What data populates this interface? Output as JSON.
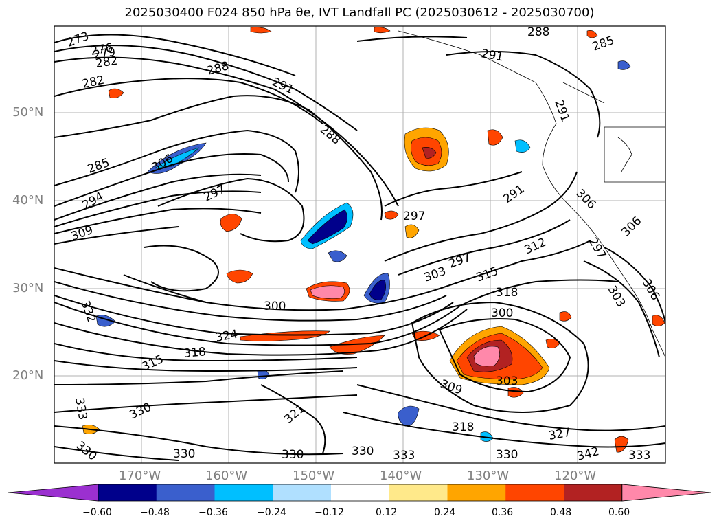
{
  "title": "2025030400 F024 850 hPa θe, IVT Landfall PC (2025030612 - 2025030700)",
  "lat_labels": [
    "50°N",
    "40°N",
    "30°N",
    "20°N"
  ],
  "lon_labels": [
    "170°W",
    "160°W",
    "150°W",
    "140°W",
    "130°W",
    "120°W"
  ],
  "contour_labels": [
    "273",
    "276",
    "279",
    "282",
    "282",
    "288",
    "288",
    "291",
    "291",
    "291",
    "285",
    "297",
    "288",
    "285",
    "306",
    "294",
    "297",
    "309",
    "297",
    "291",
    "306",
    "306",
    "312",
    "297",
    "315",
    "318",
    "303",
    "300",
    "300",
    "324",
    "318",
    "315",
    "303",
    "309",
    "330",
    "321",
    "330",
    "318",
    "330",
    "333",
    "330",
    "327",
    "342",
    "333",
    "330",
    "306",
    "303",
    "332",
    "333",
    "330"
  ],
  "colorbar": {
    "ticks": [
      "−0.60",
      "−0.48",
      "−0.36",
      "−0.24",
      "−0.12",
      "0.12",
      "0.24",
      "0.36",
      "0.48",
      "0.60"
    ],
    "colors": [
      "#9b30d0",
      "#00008b",
      "#3a5fcd",
      "#00bfff",
      "#b0e0ff",
      "#ffffff",
      "#ffe98a",
      "#ffa500",
      "#ff4500",
      "#b22222",
      "#ff88aa"
    ]
  }
}
